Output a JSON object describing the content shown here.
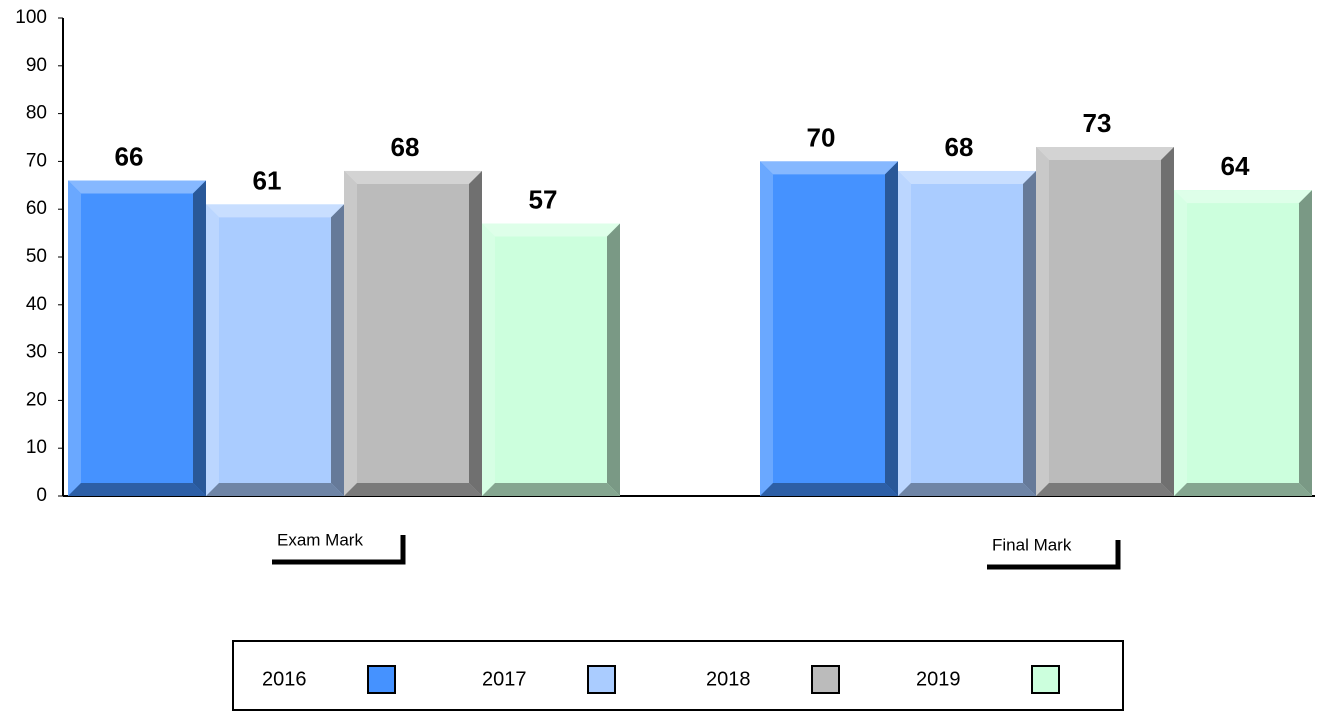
{
  "chart_data": {
    "type": "bar",
    "categories": [
      "Exam Mark",
      "Final Mark"
    ],
    "series": [
      {
        "name": "2016",
        "color": "#4592ff",
        "values": [
          66,
          70
        ]
      },
      {
        "name": "2017",
        "color": "#aaccff",
        "values": [
          61,
          68
        ]
      },
      {
        "name": "2018",
        "color": "#bbbbbb",
        "values": [
          68,
          73
        ]
      },
      {
        "name": "2019",
        "color": "#ccffdd",
        "values": [
          57,
          64
        ]
      }
    ],
    "ylim": [
      0,
      100
    ],
    "yticks": [
      0,
      10,
      20,
      30,
      40,
      50,
      60,
      70,
      80,
      90,
      100
    ],
    "grid": false,
    "legend": "bottom"
  }
}
